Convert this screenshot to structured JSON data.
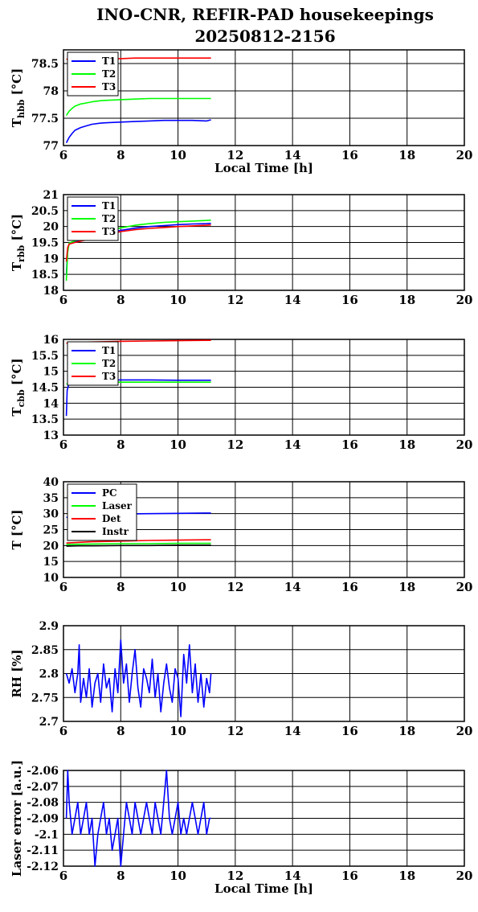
{
  "title_line1": "INO-CNR, REFIR-PAD housekeepings",
  "title_line2": "20250812-2156",
  "chart_data": [
    {
      "type": "line",
      "ylabel": "T",
      "ylabel_sub": "hbb",
      "ylabel_unit": " [°C]",
      "xlabel": "Local Time [h]",
      "xlim": [
        6,
        20
      ],
      "ylim": [
        77,
        78.75
      ],
      "xticks": [
        "6",
        "8",
        "10",
        "12",
        "14",
        "16",
        "18",
        "20"
      ],
      "yticks": [
        "77",
        "77.5",
        "78",
        "78.5"
      ],
      "ytick_values": [
        77,
        77.5,
        78,
        78.5
      ],
      "grid": true,
      "legend_position": "top-left",
      "series": [
        {
          "name": "T1",
          "color": "#0000ff",
          "x": [
            6.1,
            6.2,
            6.3,
            6.4,
            6.6,
            6.8,
            7.0,
            7.3,
            7.6,
            8.0,
            8.5,
            9.0,
            9.5,
            10.0,
            10.5,
            11.0,
            11.15
          ],
          "values": [
            77.05,
            77.15,
            77.22,
            77.28,
            77.33,
            77.36,
            77.39,
            77.41,
            77.42,
            77.43,
            77.44,
            77.45,
            77.46,
            77.46,
            77.46,
            77.45,
            77.47
          ]
        },
        {
          "name": "T2",
          "color": "#00ff00",
          "x": [
            6.1,
            6.2,
            6.3,
            6.4,
            6.6,
            6.8,
            7.0,
            7.3,
            7.6,
            8.0,
            8.5,
            9.0,
            9.5,
            10.0,
            10.5,
            11.0,
            11.15
          ],
          "values": [
            77.55,
            77.63,
            77.68,
            77.72,
            77.76,
            77.78,
            77.8,
            77.82,
            77.83,
            77.84,
            77.85,
            77.86,
            77.86,
            77.86,
            77.86,
            77.86,
            77.86
          ]
        },
        {
          "name": "T3",
          "color": "#ff0000",
          "x": [
            6.1,
            6.3,
            6.6,
            7.0,
            7.5,
            8.0,
            8.5,
            9.0,
            9.5,
            10.0,
            10.5,
            11.0,
            11.15
          ],
          "values": [
            78.58,
            78.58,
            78.58,
            78.59,
            78.59,
            78.59,
            78.6,
            78.6,
            78.6,
            78.6,
            78.6,
            78.6,
            78.6
          ]
        }
      ]
    },
    {
      "type": "line",
      "ylabel": "T",
      "ylabel_sub": "rbb",
      "ylabel_unit": " [°C]",
      "xlabel": "",
      "xlim": [
        6,
        20
      ],
      "ylim": [
        18,
        21
      ],
      "xticks": [
        "6",
        "8",
        "10",
        "12",
        "14",
        "16",
        "18",
        "20"
      ],
      "yticks": [
        "18",
        "18.5",
        "19",
        "19.5",
        "20",
        "20.5",
        "21"
      ],
      "ytick_values": [
        18,
        18.5,
        19,
        19.5,
        20,
        20.5,
        21
      ],
      "grid": true,
      "legend_position": "top-left",
      "series": [
        {
          "name": "T1",
          "color": "#0000ff",
          "x": [
            6.1,
            6.15,
            6.2,
            6.4,
            6.7,
            7.0,
            7.5,
            8.0,
            8.5,
            9.0,
            9.5,
            10.0,
            10.5,
            11.0,
            11.15
          ],
          "values": [
            18.5,
            19.3,
            19.45,
            19.52,
            19.58,
            19.65,
            19.78,
            19.88,
            19.95,
            20.0,
            20.03,
            20.06,
            20.08,
            20.09,
            20.1
          ]
        },
        {
          "name": "T2",
          "color": "#00ff00",
          "x": [
            6.1,
            6.15,
            6.2,
            6.4,
            6.7,
            7.0,
            7.5,
            8.0,
            8.5,
            9.0,
            9.5,
            10.0,
            10.5,
            11.0,
            11.15
          ],
          "values": [
            18.3,
            19.2,
            19.48,
            19.55,
            19.62,
            19.7,
            19.84,
            19.96,
            20.04,
            20.09,
            20.13,
            20.15,
            20.17,
            20.19,
            20.2
          ]
        },
        {
          "name": "T3",
          "color": "#ff0000",
          "x": [
            6.1,
            6.15,
            6.2,
            6.4,
            6.7,
            7.0,
            7.5,
            8.0,
            8.5,
            9.0,
            9.5,
            10.0,
            10.5,
            11.0,
            11.15
          ],
          "values": [
            18.9,
            19.35,
            19.45,
            19.5,
            19.56,
            19.62,
            19.74,
            19.84,
            19.9,
            19.94,
            19.97,
            20.0,
            20.02,
            20.04,
            20.05
          ]
        }
      ]
    },
    {
      "type": "line",
      "ylabel": "T",
      "ylabel_sub": "cbb",
      "ylabel_unit": " [°C]",
      "xlabel": "",
      "xlim": [
        6,
        20
      ],
      "ylim": [
        13,
        16
      ],
      "xticks": [
        "6",
        "8",
        "10",
        "12",
        "14",
        "16",
        "18",
        "20"
      ],
      "yticks": [
        "13",
        "13.5",
        "14",
        "14.5",
        "15",
        "15.5",
        "16"
      ],
      "ytick_values": [
        13,
        13.5,
        14,
        14.5,
        15,
        15.5,
        16
      ],
      "grid": true,
      "legend_position": "top-left",
      "series": [
        {
          "name": "T1",
          "color": "#0000ff",
          "x": [
            6.1,
            6.13,
            6.2,
            6.5,
            7.0,
            7.5,
            8.0,
            9.0,
            10.0,
            11.0,
            11.15
          ],
          "values": [
            13.6,
            14.4,
            14.65,
            14.7,
            14.72,
            14.73,
            14.73,
            14.73,
            14.72,
            14.72,
            14.72
          ]
        },
        {
          "name": "T2",
          "color": "#00ff00",
          "x": [
            6.1,
            6.2,
            6.5,
            7.0,
            7.5,
            8.0,
            9.0,
            10.0,
            11.0,
            11.15
          ],
          "values": [
            14.6,
            14.62,
            14.64,
            14.65,
            14.66,
            14.66,
            14.66,
            14.66,
            14.66,
            14.66
          ]
        },
        {
          "name": "T3",
          "color": "#ff0000",
          "x": [
            6.1,
            6.2,
            6.5,
            7.0,
            7.5,
            8.0,
            9.0,
            10.0,
            11.0,
            11.15
          ],
          "values": [
            15.88,
            15.9,
            15.91,
            15.92,
            15.93,
            15.94,
            15.95,
            15.96,
            15.97,
            15.97
          ]
        }
      ]
    },
    {
      "type": "line",
      "ylabel": "T [°C]",
      "ylabel_sub": "",
      "ylabel_unit": "",
      "xlabel": "",
      "xlim": [
        6,
        20
      ],
      "ylim": [
        10,
        40
      ],
      "xticks": [
        "6",
        "8",
        "10",
        "12",
        "14",
        "16",
        "18",
        "20"
      ],
      "yticks": [
        "10",
        "15",
        "20",
        "25",
        "30",
        "35",
        "40"
      ],
      "ytick_values": [
        10,
        15,
        20,
        25,
        30,
        35,
        40
      ],
      "grid": true,
      "legend_position": "top-left",
      "series": [
        {
          "name": "PC",
          "color": "#0000ff",
          "x": [
            6.1,
            6.5,
            7.0,
            8.0,
            9.0,
            10.0,
            11.0,
            11.15
          ],
          "values": [
            28.8,
            29.5,
            29.8,
            29.9,
            30.0,
            30.1,
            30.2,
            30.2
          ]
        },
        {
          "name": "Laser",
          "color": "#00ff00",
          "x": [
            6.1,
            6.5,
            7.0,
            8.0,
            9.0,
            10.0,
            11.0,
            11.15
          ],
          "values": [
            20.3,
            20.4,
            20.5,
            20.6,
            20.6,
            20.7,
            20.7,
            20.7
          ]
        },
        {
          "name": "Det",
          "color": "#ff0000",
          "x": [
            6.1,
            6.5,
            7.0,
            8.0,
            9.0,
            10.0,
            11.0,
            11.15
          ],
          "values": [
            20.8,
            21.0,
            21.2,
            21.4,
            21.6,
            21.7,
            21.8,
            21.8
          ]
        },
        {
          "name": "Instr",
          "color": "#000000",
          "x": [
            6.1,
            6.5,
            7.0,
            8.0,
            9.0,
            10.0,
            11.0,
            11.15
          ],
          "values": [
            19.8,
            19.9,
            19.9,
            20.0,
            20.0,
            20.1,
            20.1,
            20.1
          ]
        }
      ]
    },
    {
      "type": "line",
      "ylabel": "RH [%]",
      "ylabel_sub": "",
      "ylabel_unit": "",
      "xlabel": "",
      "xlim": [
        6,
        20
      ],
      "ylim": [
        2.7,
        2.9
      ],
      "xticks": [
        "6",
        "8",
        "10",
        "12",
        "14",
        "16",
        "18",
        "20"
      ],
      "yticks": [
        "2.7",
        "2.75",
        "2.8",
        "2.85",
        "2.9"
      ],
      "ytick_values": [
        2.7,
        2.75,
        2.8,
        2.85,
        2.9
      ],
      "grid": true,
      "legend_position": "",
      "series": [
        {
          "name": "",
          "color": "#0000ff",
          "x": [
            6.1,
            6.2,
            6.3,
            6.4,
            6.5,
            6.55,
            6.6,
            6.7,
            6.8,
            6.9,
            7.0,
            7.1,
            7.2,
            7.3,
            7.4,
            7.5,
            7.6,
            7.7,
            7.8,
            7.9,
            8.0,
            8.1,
            8.2,
            8.3,
            8.4,
            8.5,
            8.6,
            8.7,
            8.8,
            8.9,
            9.0,
            9.1,
            9.2,
            9.3,
            9.4,
            9.5,
            9.6,
            9.7,
            9.8,
            9.9,
            10.0,
            10.1,
            10.2,
            10.3,
            10.4,
            10.5,
            10.6,
            10.7,
            10.8,
            10.9,
            11.0,
            11.1,
            11.15
          ],
          "values": [
            2.8,
            2.78,
            2.81,
            2.76,
            2.8,
            2.86,
            2.74,
            2.79,
            2.75,
            2.81,
            2.73,
            2.78,
            2.8,
            2.74,
            2.82,
            2.77,
            2.79,
            2.72,
            2.81,
            2.76,
            2.87,
            2.78,
            2.82,
            2.74,
            2.8,
            2.85,
            2.77,
            2.73,
            2.81,
            2.79,
            2.76,
            2.83,
            2.75,
            2.8,
            2.72,
            2.78,
            2.82,
            2.77,
            2.74,
            2.81,
            2.79,
            2.71,
            2.84,
            2.78,
            2.86,
            2.76,
            2.82,
            2.74,
            2.8,
            2.73,
            2.79,
            2.76,
            2.8
          ]
        }
      ]
    },
    {
      "type": "line",
      "ylabel": "Laser error [a.u.]",
      "ylabel_sub": "",
      "ylabel_unit": "",
      "xlabel": "Local Time [h]",
      "xlim": [
        6,
        20
      ],
      "ylim": [
        -2.12,
        -2.06
      ],
      "xticks": [
        "6",
        "8",
        "10",
        "12",
        "14",
        "16",
        "18",
        "20"
      ],
      "yticks": [
        "-2.12",
        "-2.11",
        "-2.1",
        "-2.09",
        "-2.08",
        "-2.07",
        "-2.06"
      ],
      "ytick_values": [
        -2.12,
        -2.11,
        -2.1,
        -2.09,
        -2.08,
        -2.07,
        -2.06
      ],
      "grid": true,
      "legend_position": "",
      "series": [
        {
          "name": "",
          "color": "#0000ff",
          "x": [
            6.1,
            6.15,
            6.2,
            6.3,
            6.4,
            6.5,
            6.6,
            6.7,
            6.8,
            6.9,
            7.0,
            7.1,
            7.2,
            7.3,
            7.4,
            7.5,
            7.6,
            7.7,
            7.8,
            7.9,
            8.0,
            8.1,
            8.2,
            8.3,
            8.4,
            8.5,
            8.6,
            8.7,
            8.8,
            8.9,
            9.0,
            9.1,
            9.2,
            9.3,
            9.4,
            9.5,
            9.6,
            9.7,
            9.8,
            9.9,
            10.0,
            10.1,
            10.2,
            10.3,
            10.4,
            10.5,
            10.6,
            10.7,
            10.8,
            10.9,
            11.0,
            11.1,
            11.15
          ],
          "values": [
            -2.09,
            -2.06,
            -2.08,
            -2.1,
            -2.09,
            -2.08,
            -2.1,
            -2.09,
            -2.08,
            -2.1,
            -2.09,
            -2.12,
            -2.1,
            -2.09,
            -2.08,
            -2.1,
            -2.09,
            -2.11,
            -2.1,
            -2.09,
            -2.12,
            -2.1,
            -2.08,
            -2.09,
            -2.1,
            -2.08,
            -2.09,
            -2.1,
            -2.09,
            -2.08,
            -2.09,
            -2.1,
            -2.08,
            -2.09,
            -2.1,
            -2.08,
            -2.06,
            -2.09,
            -2.1,
            -2.09,
            -2.08,
            -2.1,
            -2.09,
            -2.1,
            -2.09,
            -2.08,
            -2.09,
            -2.1,
            -2.09,
            -2.08,
            -2.1,
            -2.09,
            -2.09
          ]
        }
      ]
    }
  ]
}
